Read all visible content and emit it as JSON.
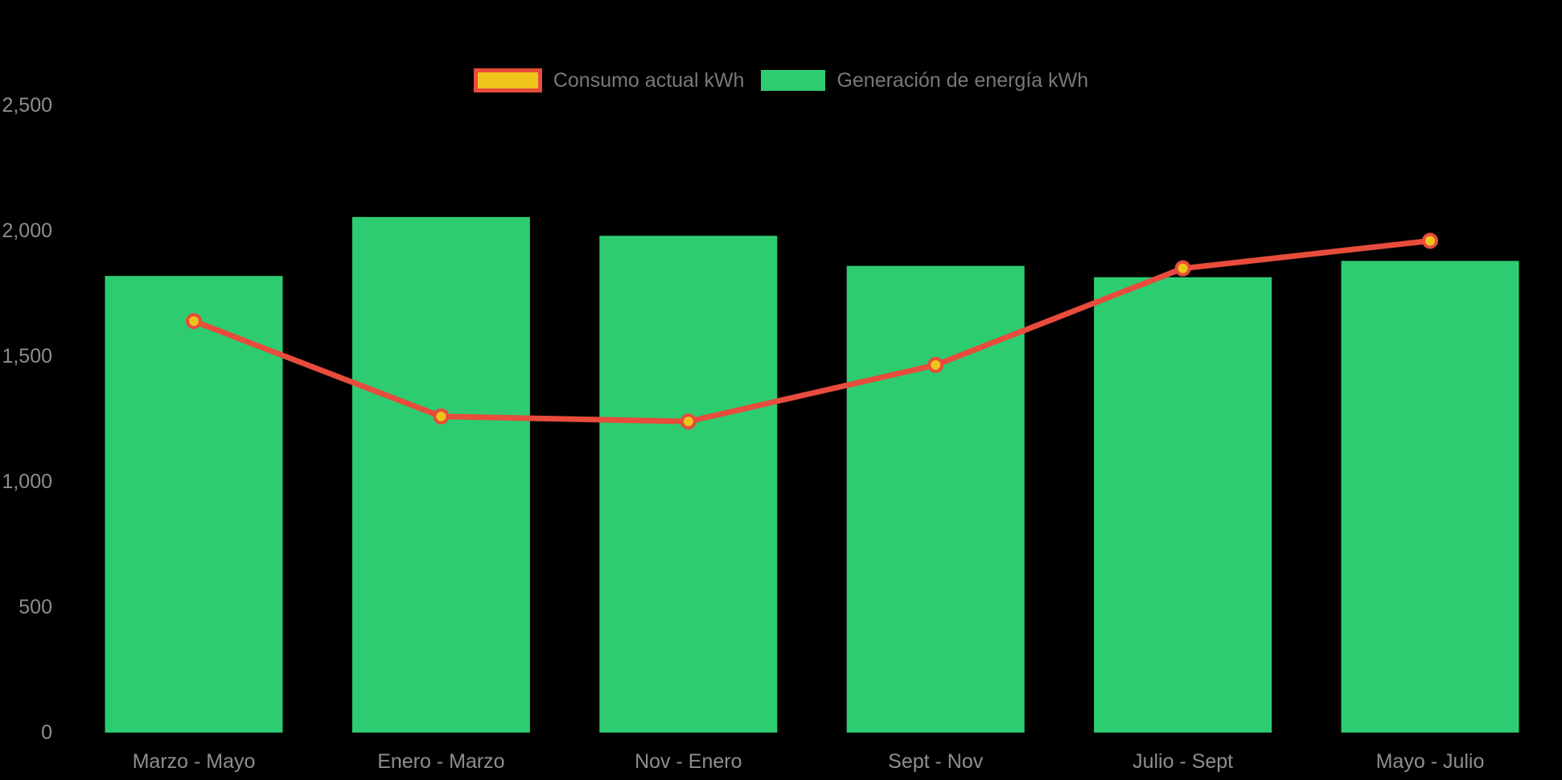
{
  "chart_data": {
    "type": "combo",
    "title": "",
    "background": "#000000",
    "grid": false,
    "legend_position": "top",
    "categories": [
      "Marzo - Mayo",
      "Enero - Marzo",
      "Nov - Enero",
      "Sept - Nov",
      "Julio - Sept",
      "Mayo - Julio"
    ],
    "series": [
      {
        "name": "Consumo actual kWh",
        "type": "line",
        "color": "#e74c3c",
        "point_fill": "#eec41a",
        "values": [
          1640,
          1260,
          1240,
          1465,
          1850,
          1960
        ]
      },
      {
        "name": "Generación de energía kWh",
        "type": "bar",
        "color": "#2ecc71",
        "values": [
          1820,
          2055,
          1980,
          1860,
          1815,
          1880
        ]
      }
    ],
    "y_axis": {
      "min": 0,
      "max": 2500,
      "step": 500,
      "tick_labels": [
        "0",
        "500",
        "1,000",
        "1,500",
        "2,000",
        "2,500"
      ]
    },
    "ylim": [
      0,
      2500
    ],
    "xlabel": "",
    "ylabel": "",
    "colors": {
      "axis_text": "#8e8e8e",
      "legend_text": "#787878"
    }
  }
}
